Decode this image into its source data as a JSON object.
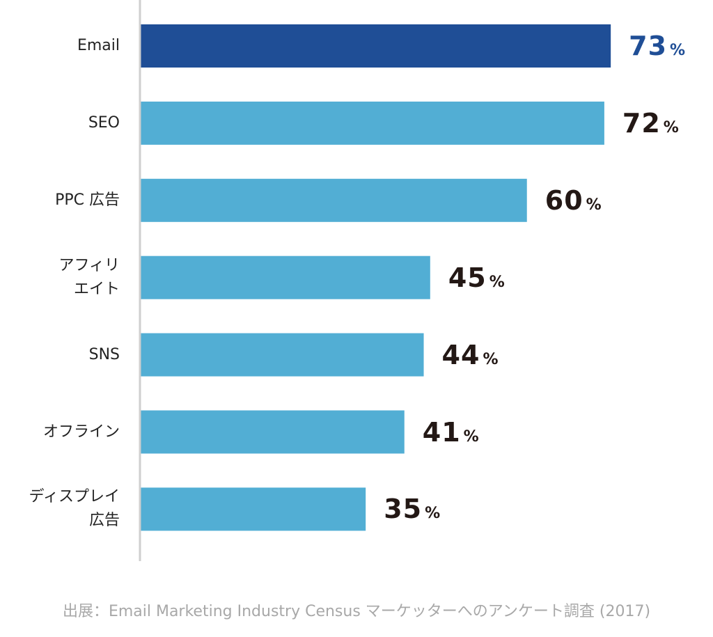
{
  "chart_data": {
    "type": "hbar",
    "categories": [
      "Email",
      "SEO",
      "PPC 広告",
      "アフィリ\nエイト",
      "SNS",
      "オフライン",
      "ディスプレイ\n広告"
    ],
    "values": [
      73,
      72,
      60,
      45,
      44,
      41,
      35
    ],
    "value_labels": [
      "73%",
      "72%",
      "60%",
      "45%",
      "44%",
      "41%",
      "35%"
    ],
    "colors": [
      "#1f4e96",
      "#52aed4",
      "#52aed4",
      "#52aed4",
      "#52aed4",
      "#52aed4",
      "#52aed4"
    ],
    "label_colors": [
      "#1f4e96",
      "#231815",
      "#231815",
      "#231815",
      "#231815",
      "#231815",
      "#231815"
    ],
    "xlim": [
      0,
      80
    ],
    "source": "出展：Email Marketing Industry Census マーケッターへのアンケート調査 (2017)"
  }
}
